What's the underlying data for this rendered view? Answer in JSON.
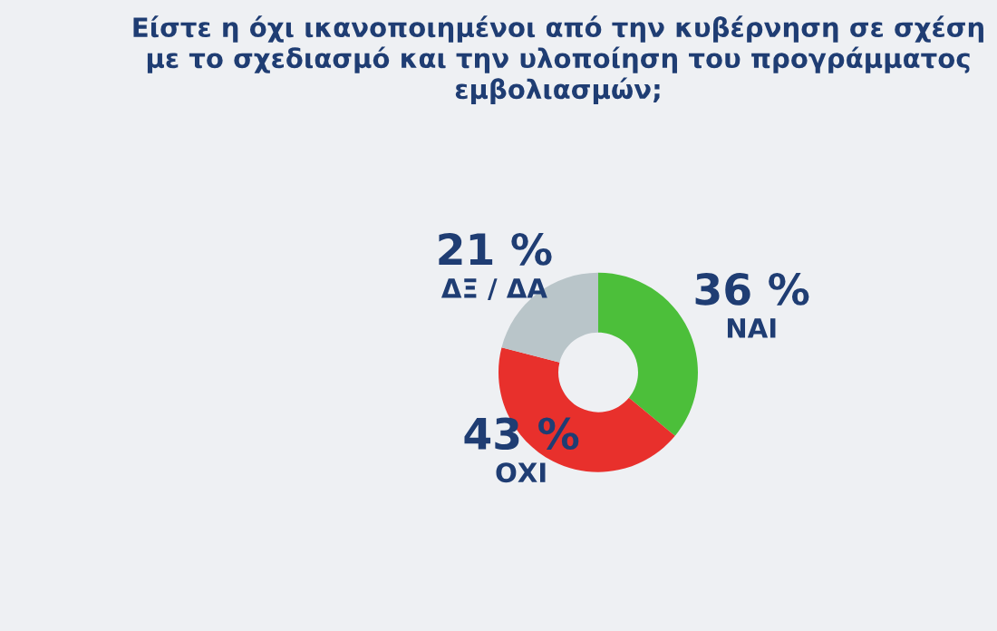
{
  "chart_data": {
    "type": "donut",
    "title": "Είστε η όχι ικανοποιημένοι από την κυβέρνηση σε σχέση με το σχεδιασμό και την υλοποίηση του προγράμματος εμβολιασμών;",
    "categories": [
      "ΝΑΙ",
      "ΟΧΙ",
      "ΔΞ / ΔΑ"
    ],
    "values": [
      36,
      43,
      21
    ],
    "value_labels": [
      "36 %",
      "43 %",
      "21 %"
    ],
    "colors": [
      "#4cbf3a",
      "#e8302c",
      "#b9c5c9"
    ],
    "legend": false
  }
}
